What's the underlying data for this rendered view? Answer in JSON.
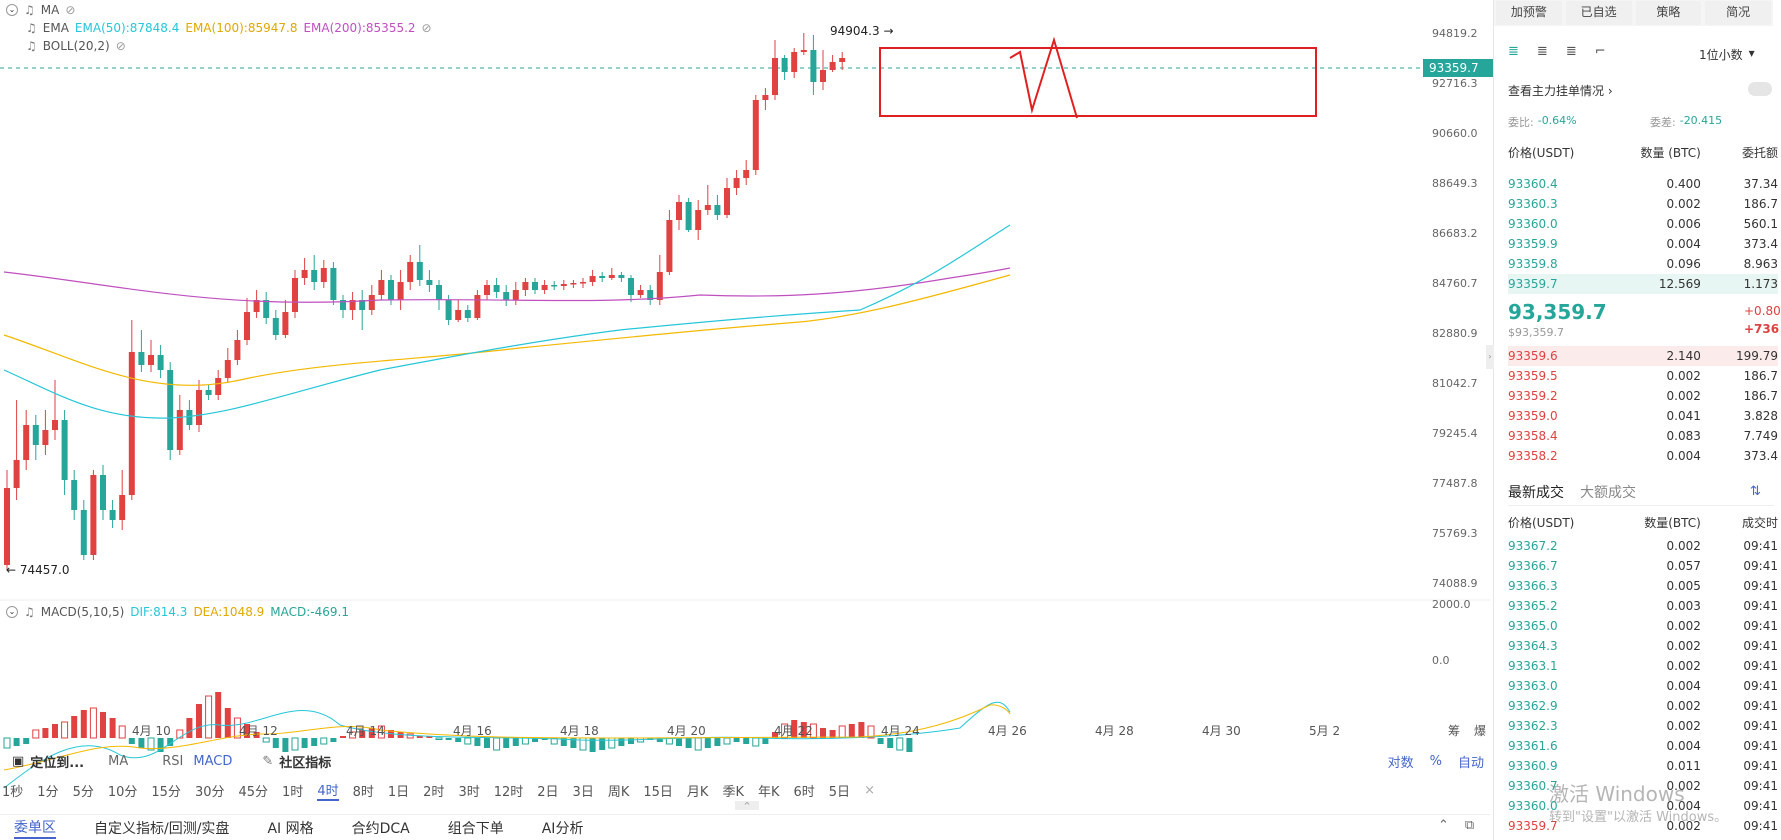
{
  "indicators": {
    "ma_label": "MA",
    "ema_label": "EMA",
    "ema50": "EMA(50):87848.4",
    "ema100": "EMA(100):85947.8",
    "ema200": "EMA(200):85355.2",
    "boll": "BOLL(20,2)",
    "macd_label": "MACD(5,10,5)",
    "dif": "DIF:814.3",
    "dea": "DEA:1048.9",
    "macd": "MACD:-469.1"
  },
  "colors": {
    "up": "#e04141",
    "down": "#26a69a",
    "ema50": "#26c6da",
    "ema100": "#f5b800",
    "ema200": "#c04fc0",
    "box": "#e02020"
  },
  "annotations": {
    "high": "94904.3 →",
    "low": "← 74457.0"
  },
  "current_price": "93359.7",
  "price_axis": [
    "94819.2",
    "92716.3",
    "90660.0",
    "88649.3",
    "86683.2",
    "84760.7",
    "82880.9",
    "81042.7",
    "79245.4",
    "77487.8",
    "75769.3",
    "74088.9"
  ],
  "macd_axis": [
    "2000.0",
    "0.0"
  ],
  "date_axis": [
    "4月 10",
    "4月 12",
    "4月 14",
    "4月 16",
    "4月 18",
    "4月 20",
    "4月 22",
    "4月 24",
    "4月 26",
    "4月 28",
    "4月 30",
    "5月 2"
  ],
  "axis_icons": [
    "筹",
    "爆"
  ],
  "toolbar": {
    "locate": "定位到...",
    "ma": "MA",
    "rsi": "RSI",
    "macd": "MACD",
    "community": "社区指标",
    "log": "对数",
    "percent": "%",
    "auto": "自动"
  },
  "intervals": [
    "1秒",
    "1分",
    "5分",
    "10分",
    "15分",
    "30分",
    "45分",
    "1时",
    "4时",
    "8时",
    "1日",
    "2时",
    "3时",
    "12时",
    "2日",
    "3日",
    "周K",
    "15日",
    "月K",
    "季K",
    "年K",
    "6时",
    "5日"
  ],
  "active_interval": "4时",
  "bottom_tabs": [
    "委单区",
    "自定义指标/回测/实盘",
    "AI 网格",
    "合约DCA",
    "组合下单",
    "AI分析"
  ],
  "right_panel": {
    "top_buttons": [
      "加预警",
      "已自选",
      "策略",
      "简况"
    ],
    "decimals": "1位小数",
    "main_orders": "查看主力挂单情况",
    "ratio_label": "委比:",
    "ratio_value": "-0.64%",
    "diff_label": "委差:",
    "diff_value": "-20.415",
    "book_headers": [
      "价格(USDT)",
      "数量 (BTC)",
      "委托额"
    ],
    "asks": [
      [
        "93360.4",
        "0.400",
        "37.34"
      ],
      [
        "93360.3",
        "0.002",
        "186.7"
      ],
      [
        "93360.0",
        "0.006",
        "560.1"
      ],
      [
        "93359.9",
        "0.004",
        "373.4"
      ],
      [
        "93359.8",
        "0.096",
        "8.963"
      ],
      [
        "93359.7",
        "12.569",
        "1.173"
      ]
    ],
    "last_price": "93,359.7",
    "last_price_usd": "$93,359.7",
    "change1": "+0.80",
    "change2": "+736",
    "bids": [
      [
        "93359.6",
        "2.140",
        "199.79"
      ],
      [
        "93359.5",
        "0.002",
        "186.7"
      ],
      [
        "93359.2",
        "0.002",
        "186.7"
      ],
      [
        "93359.0",
        "0.041",
        "3.828"
      ],
      [
        "93358.4",
        "0.083",
        "7.749"
      ],
      [
        "93358.2",
        "0.004",
        "373.4"
      ]
    ],
    "trades_tab1": "最新成交",
    "trades_tab2": "大额成交",
    "trade_headers": [
      "价格(USDT)",
      "数量(BTC)",
      "成交时"
    ],
    "trades": [
      [
        "93367.2",
        "0.002",
        "09:41"
      ],
      [
        "93366.7",
        "0.057",
        "09:41"
      ],
      [
        "93366.3",
        "0.005",
        "09:41"
      ],
      [
        "93365.2",
        "0.003",
        "09:41"
      ],
      [
        "93365.0",
        "0.002",
        "09:41"
      ],
      [
        "93364.3",
        "0.002",
        "09:41"
      ],
      [
        "93363.1",
        "0.002",
        "09:41"
      ],
      [
        "93363.0",
        "0.004",
        "09:41"
      ],
      [
        "93362.9",
        "0.002",
        "09:41"
      ],
      [
        "93362.3",
        "0.002",
        "09:41"
      ],
      [
        "93361.6",
        "0.004",
        "09:41"
      ],
      [
        "93360.9",
        "0.011",
        "09:41"
      ],
      [
        "93360.7",
        "0.002",
        "09:41"
      ],
      [
        "93360.0",
        "0.004",
        "09:41"
      ],
      [
        "93359.7",
        "0.002",
        "09:41"
      ]
    ],
    "watermark1": "激活 Windows",
    "watermark2": "转到\"设置\"以激活 Windows。"
  }
}
